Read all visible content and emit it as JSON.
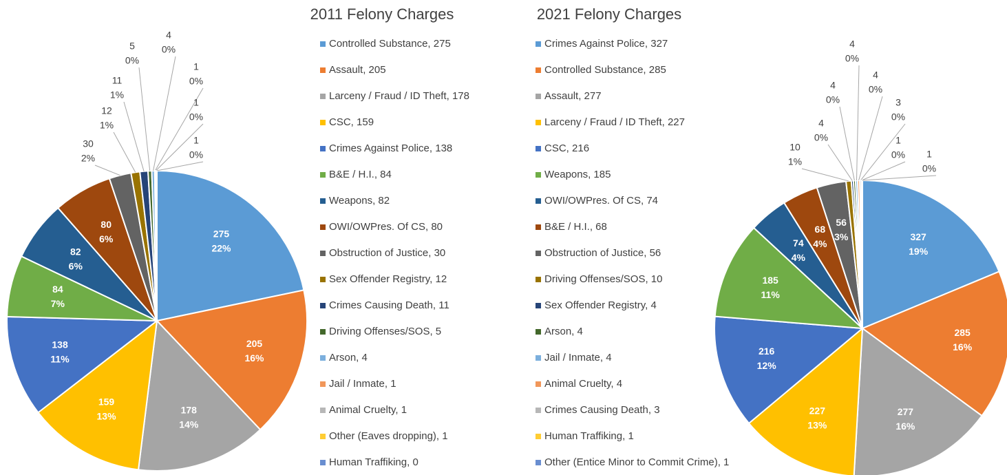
{
  "chart_data": [
    {
      "type": "pie",
      "title": "2011 Felony Charges",
      "categories": [
        "Controlled Substance, 275",
        "Assault, 205",
        "Larceny / Fraud / ID Theft, 178",
        "CSC, 159",
        "Crimes Against Police, 138",
        "B&E / H.I., 84",
        "Weapons, 82",
        "OWI/OWPres. Of CS, 80",
        "Obstruction of Justice, 30",
        "Sex Offender Registry, 12",
        "Crimes Causing Death, 11",
        "Driving Offenses/SOS, 5",
        "Arson, 4",
        "Jail / Inmate, 1",
        "Animal Cruelty, 1",
        "Other (Eaves dropping), 1",
        "Human Traffiking, 0"
      ],
      "values": [
        275,
        205,
        178,
        159,
        138,
        84,
        82,
        80,
        30,
        12,
        11,
        5,
        4,
        1,
        1,
        1,
        0
      ],
      "percents": [
        22,
        16,
        14,
        13,
        11,
        7,
        6,
        6,
        2,
        1,
        1,
        0,
        0,
        0,
        0,
        0,
        null
      ],
      "percent_labels": [
        "22%",
        "16%",
        "14%",
        "13%",
        "11%",
        "7%",
        "6%",
        "6%",
        "2%",
        "1%",
        "1%",
        "0%",
        "0%",
        "0%",
        "0%",
        "0%",
        null
      ],
      "colors": [
        "#5b9bd5",
        "#ed7d31",
        "#a5a5a5",
        "#ffc000",
        "#4472c4",
        "#70ad47",
        "#255e91",
        "#9e480e",
        "#636363",
        "#997300",
        "#264478",
        "#43682b",
        "#7cafdd",
        "#f1975a",
        "#b7b7b7",
        "#ffcd33",
        "#698ed0"
      ]
    },
    {
      "type": "pie",
      "title": "2021 Felony Charges",
      "categories": [
        "Crimes Against Police, 327",
        "Controlled Substance, 285",
        "Assault, 277",
        "Larceny / Fraud / ID Theft, 227",
        "CSC, 216",
        "Weapons, 185",
        "OWI/OWPres. Of CS, 74",
        "B&E / H.I., 68",
        "Obstruction of Justice, 56",
        "Driving Offenses/SOS, 10",
        "Sex Offender Registry, 4",
        "Arson, 4",
        "Jail / Inmate, 4",
        "Animal Cruelty, 4",
        "Crimes Causing Death, 3",
        "Human Traffiking, 1",
        "Other (Entice Minor to Commit Crime), 1"
      ],
      "values": [
        327,
        285,
        277,
        227,
        216,
        185,
        74,
        68,
        56,
        10,
        4,
        4,
        4,
        4,
        3,
        1,
        1
      ],
      "percents": [
        19,
        16,
        16,
        13,
        12,
        11,
        4,
        4,
        3,
        1,
        0,
        0,
        0,
        0,
        0,
        0,
        0
      ],
      "percent_labels": [
        "19%",
        "16%",
        "16%",
        "13%",
        "12%",
        "11%",
        "4%",
        "4%",
        "3%",
        "1%",
        "0%",
        "0%",
        "0%",
        "0%",
        "0%",
        "0%",
        "0%"
      ],
      "colors": [
        "#5b9bd5",
        "#ed7d31",
        "#a5a5a5",
        "#ffc000",
        "#4472c4",
        "#70ad47",
        "#255e91",
        "#9e480e",
        "#636363",
        "#997300",
        "#264478",
        "#43682b",
        "#7cafdd",
        "#f1975a",
        "#b7b7b7",
        "#ffcd33",
        "#698ed0"
      ]
    }
  ]
}
